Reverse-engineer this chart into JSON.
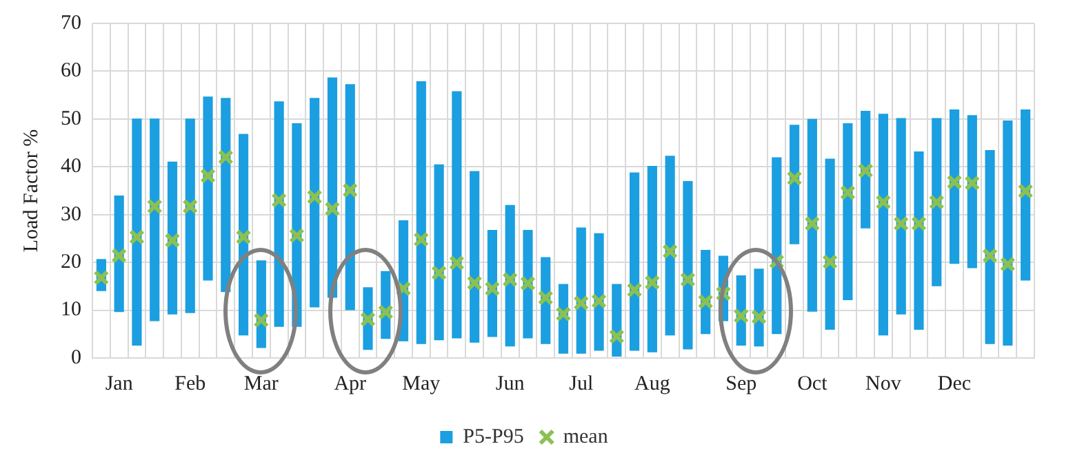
{
  "chart_data": {
    "type": "bar",
    "ylabel": "Load Factor %",
    "categories": [
      null,
      "Jan",
      null,
      null,
      null,
      "Feb",
      null,
      null,
      null,
      "Mar",
      null,
      null,
      null,
      null,
      "Apr",
      null,
      null,
      null,
      "May",
      null,
      null,
      null,
      null,
      "Jun",
      null,
      null,
      null,
      "Jul",
      null,
      null,
      null,
      "Aug",
      null,
      null,
      null,
      null,
      "Sep",
      null,
      null,
      null,
      "Oct",
      null,
      null,
      null,
      "Nov",
      null,
      null,
      null,
      "Dec",
      null,
      null,
      null,
      null
    ],
    "series": [
      {
        "name": "P5-P95",
        "type": "bar",
        "color": "#1b9fe0",
        "base": [
          14.0,
          9.6,
          2.6,
          7.7,
          9.1,
          9.4,
          16.2,
          13.8,
          4.7,
          2.1,
          6.5,
          6.5,
          10.6,
          12.6,
          10.0,
          1.7,
          4.0,
          3.5,
          2.9,
          3.7,
          4.1,
          3.2,
          4.4,
          2.4,
          4.1,
          2.9,
          0.9,
          0.9,
          1.5,
          0.3,
          1.5,
          1.2,
          4.7,
          1.8,
          5.0,
          7.7,
          2.6,
          2.4,
          5.0,
          23.8,
          9.7,
          5.9,
          12.1,
          27.1,
          4.7,
          9.1,
          5.9,
          15.0,
          19.7,
          18.8,
          2.9,
          2.6,
          16.2
        ],
        "values": [
          6.7,
          24.4,
          47.5,
          42.4,
          32.0,
          40.7,
          38.5,
          40.6,
          42.2,
          18.3,
          47.2,
          42.6,
          43.8,
          46.1,
          47.3,
          13.1,
          14.2,
          25.3,
          55.0,
          36.8,
          51.7,
          35.9,
          22.4,
          29.6,
          22.7,
          18.2,
          14.6,
          26.4,
          24.6,
          15.2,
          37.3,
          39.0,
          37.6,
          35.2,
          17.6,
          13.7,
          14.7,
          16.3,
          37.0,
          25.0,
          40.3,
          35.8,
          37.0,
          24.6,
          46.4,
          41.1,
          37.3,
          35.2,
          32.3,
          32.0,
          40.6,
          47.1,
          35.8
        ]
      },
      {
        "name": "mean",
        "type": "scatter",
        "marker": "cross",
        "color": "#8cc152",
        "values": [
          16.8,
          21.4,
          25.3,
          31.7,
          24.6,
          31.7,
          38.1,
          42.0,
          25.3,
          7.9,
          33.0,
          25.6,
          33.7,
          31.2,
          35.1,
          8.1,
          9.6,
          14.5,
          24.8,
          17.8,
          19.9,
          15.7,
          14.5,
          16.4,
          15.6,
          12.6,
          9.2,
          11.5,
          11.9,
          4.5,
          14.2,
          15.8,
          22.3,
          16.4,
          11.8,
          13.5,
          8.8,
          8.6,
          20.2,
          37.6,
          28.1,
          20.1,
          34.6,
          39.2,
          32.6,
          28.1,
          28.1,
          32.6,
          36.8,
          36.6,
          21.4,
          19.6,
          34.9
        ]
      }
    ],
    "ylim": [
      0,
      70
    ],
    "yticks": [
      0,
      10,
      20,
      30,
      40,
      50,
      60,
      70
    ],
    "grid": true,
    "legend": "bottom"
  }
}
